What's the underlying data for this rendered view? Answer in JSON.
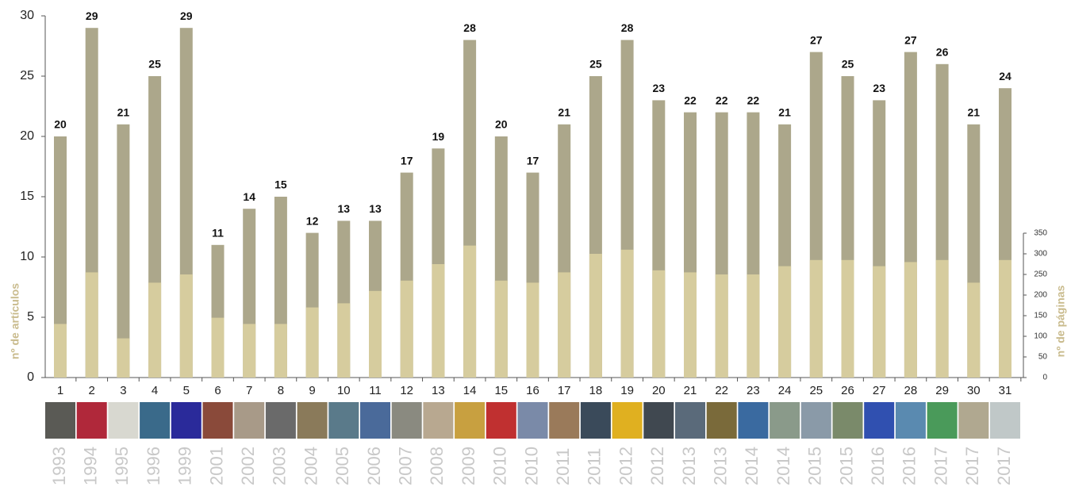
{
  "chart_data": {
    "type": "bar",
    "categories": [
      "1",
      "2",
      "3",
      "4",
      "5",
      "6",
      "7",
      "8",
      "9",
      "10",
      "11",
      "12",
      "13",
      "14",
      "15",
      "16",
      "17",
      "18",
      "19",
      "20",
      "21",
      "22",
      "23",
      "24",
      "25",
      "26",
      "27",
      "28",
      "29",
      "30",
      "31"
    ],
    "years": [
      "1993",
      "1994",
      "1995",
      "1996",
      "1999",
      "2001",
      "2002",
      "2003",
      "2004",
      "2005",
      "2006",
      "2007",
      "2008",
      "2009",
      "2010",
      "2010",
      "2011",
      "2011",
      "2012",
      "2012",
      "2013",
      "2013",
      "2014",
      "2014",
      "2015",
      "2015",
      "2016",
      "2016",
      "2017",
      "2017",
      "2017"
    ],
    "y_label": "nº de artículos",
    "y2_label": "nº de páginas",
    "series": [
      {
        "color": "#aca78b",
        "values": [
          20,
          29,
          21,
          25,
          29,
          11,
          14,
          15,
          12,
          13,
          13,
          17,
          19,
          28,
          20,
          17,
          21,
          25,
          28,
          23,
          22,
          22,
          22,
          21,
          27,
          25,
          23,
          27,
          26,
          21,
          24
        ]
      },
      {
        "color": "#d6cc9e",
        "axis": "y2",
        "values": [
          130,
          255,
          95,
          230,
          250,
          145,
          130,
          130,
          170,
          180,
          210,
          235,
          275,
          320,
          235,
          230,
          255,
          300,
          310,
          260,
          255,
          250,
          250,
          270,
          285,
          285,
          270,
          280,
          285,
          230,
          285
        ]
      }
    ],
    "ylim": [
      0,
      30
    ],
    "yticks": [
      0,
      5,
      10,
      15,
      20,
      25,
      30
    ],
    "y2lim": [
      0,
      350
    ],
    "y2ticks": [
      0,
      50,
      100,
      150,
      200,
      250,
      300,
      350
    ]
  }
}
